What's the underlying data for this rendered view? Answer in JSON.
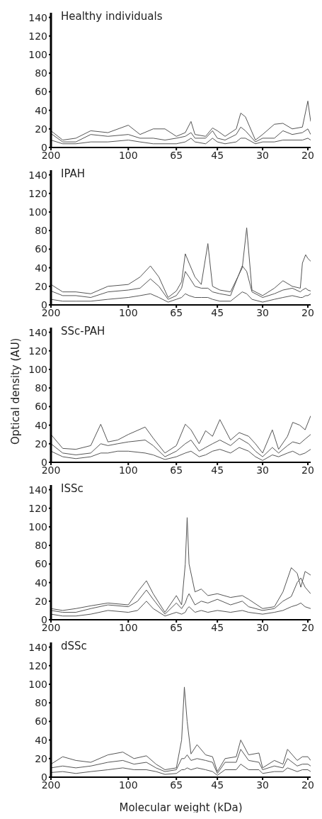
{
  "chart_data": [
    {
      "type": "line",
      "title": "Healthy individuals",
      "x": [
        200,
        180,
        160,
        140,
        120,
        100,
        90,
        80,
        72,
        65,
        60,
        57,
        55,
        50,
        47,
        45,
        42,
        38,
        36.5,
        35,
        32,
        30,
        27,
        25,
        23,
        21,
        20,
        19.5
      ],
      "series": [
        {
          "color": "#555555",
          "values": [
            18,
            8,
            10,
            18,
            16,
            24,
            14,
            20,
            20,
            12,
            16,
            28,
            14,
            12,
            21,
            18,
            12,
            20,
            37,
            33,
            8,
            14,
            25,
            26,
            20,
            22,
            50,
            28
          ]
        },
        {
          "color": "#555555",
          "values": [
            15,
            6,
            6,
            14,
            12,
            14,
            10,
            10,
            8,
            10,
            12,
            16,
            10,
            10,
            18,
            10,
            8,
            14,
            22,
            18,
            6,
            10,
            10,
            18,
            14,
            16,
            20,
            14
          ]
        },
        {
          "color": "#555555",
          "values": [
            8,
            4,
            4,
            6,
            6,
            8,
            6,
            4,
            4,
            4,
            6,
            10,
            6,
            4,
            10,
            6,
            4,
            6,
            10,
            10,
            4,
            6,
            6,
            8,
            8,
            8,
            10,
            8
          ]
        }
      ],
      "xlim": [
        200,
        19.5
      ],
      "xticks": [
        200,
        100,
        65,
        45,
        30,
        20
      ],
      "ylim": [
        0,
        145
      ],
      "yticks": [
        0,
        20,
        40,
        60,
        80,
        100,
        120,
        140
      ],
      "grid": false,
      "legend": false,
      "marker": "none",
      "line_style": "solid",
      "log": "x"
    },
    {
      "type": "line",
      "title": "IPAH",
      "x": [
        200,
        180,
        160,
        140,
        120,
        100,
        90,
        82,
        76,
        70,
        65,
        62,
        60,
        58,
        55,
        52,
        49,
        47,
        44,
        40,
        36,
        34.6,
        33,
        30,
        27,
        25,
        23,
        21.4,
        21,
        20.4,
        20,
        19.5
      ],
      "series": [
        {
          "color": "#555555",
          "values": [
            22,
            14,
            14,
            12,
            20,
            22,
            30,
            42,
            30,
            8,
            15,
            25,
            55,
            45,
            30,
            22,
            66,
            20,
            16,
            14,
            40,
            83,
            16,
            10,
            18,
            26,
            20,
            18,
            45,
            54,
            50,
            47
          ]
        },
        {
          "color": "#555555",
          "values": [
            15,
            10,
            10,
            8,
            14,
            16,
            18,
            28,
            20,
            6,
            10,
            18,
            36,
            30,
            20,
            18,
            18,
            14,
            12,
            10,
            42,
            36,
            14,
            8,
            12,
            16,
            18,
            14,
            16,
            18,
            16,
            15
          ]
        },
        {
          "color": "#555555",
          "values": [
            6,
            4,
            4,
            4,
            6,
            8,
            10,
            12,
            8,
            3,
            6,
            8,
            12,
            10,
            8,
            8,
            8,
            6,
            4,
            4,
            14,
            12,
            6,
            3,
            6,
            8,
            10,
            8,
            8,
            10,
            10,
            12
          ]
        }
      ],
      "xlim": [
        200,
        19.5
      ],
      "xticks": [
        200,
        100,
        65,
        45,
        30,
        20
      ],
      "ylim": [
        0,
        145
      ],
      "yticks": [
        0,
        20,
        40,
        60,
        80,
        100,
        120,
        140
      ],
      "grid": false,
      "legend": false,
      "marker": "none",
      "line_style": "solid",
      "log": "x"
    },
    {
      "type": "line",
      "title": "SSc-PAH",
      "ylabel": "Optical density (AU)",
      "x": [
        200,
        180,
        160,
        140,
        128,
        120,
        110,
        100,
        86,
        80,
        72,
        65,
        60,
        57,
        53,
        50,
        47,
        44,
        40,
        37,
        34,
        32,
        30,
        27.5,
        26,
        24,
        22.9,
        21.5,
        20.5,
        19.5
      ],
      "series": [
        {
          "color": "#555555",
          "values": [
            30,
            15,
            14,
            18,
            41,
            22,
            24,
            30,
            38,
            26,
            10,
            18,
            41,
            35,
            20,
            34,
            28,
            46,
            24,
            32,
            28,
            20,
            10,
            35,
            14,
            28,
            43,
            40,
            35,
            50
          ]
        },
        {
          "color": "#555555",
          "values": [
            20,
            10,
            8,
            10,
            20,
            18,
            20,
            22,
            24,
            18,
            6,
            12,
            20,
            24,
            12,
            16,
            20,
            24,
            18,
            26,
            20,
            12,
            6,
            16,
            10,
            18,
            22,
            20,
            25,
            30
          ]
        },
        {
          "color": "#555555",
          "values": [
            12,
            6,
            4,
            6,
            10,
            10,
            12,
            12,
            10,
            8,
            3,
            6,
            10,
            12,
            6,
            8,
            12,
            14,
            10,
            16,
            12,
            6,
            2,
            8,
            6,
            10,
            12,
            8,
            10,
            14
          ]
        }
      ],
      "xlim": [
        200,
        19.5
      ],
      "xticks": [
        200,
        100,
        65,
        45,
        30,
        20
      ],
      "ylim": [
        0,
        145
      ],
      "yticks": [
        0,
        20,
        40,
        60,
        80,
        100,
        120,
        140
      ],
      "grid": false,
      "legend": false,
      "marker": "none",
      "line_style": "solid",
      "log": "x"
    },
    {
      "type": "line",
      "title": "ISSc",
      "x": [
        200,
        180,
        160,
        140,
        120,
        100,
        92,
        85,
        80,
        72,
        65,
        62,
        60,
        59,
        58,
        55,
        52,
        49,
        45,
        40,
        36,
        34,
        30,
        27,
        25,
        23.2,
        22,
        21.3,
        20.5,
        19.5
      ],
      "series": [
        {
          "color": "#555555",
          "values": [
            12,
            10,
            12,
            15,
            18,
            16,
            30,
            42,
            28,
            8,
            26,
            16,
            60,
            110,
            60,
            30,
            33,
            26,
            28,
            24,
            26,
            22,
            12,
            14,
            30,
            56,
            50,
            35,
            52,
            48
          ]
        },
        {
          "color": "#555555",
          "values": [
            10,
            8,
            8,
            12,
            16,
            14,
            20,
            32,
            22,
            6,
            18,
            12,
            18,
            24,
            28,
            16,
            20,
            18,
            22,
            16,
            20,
            14,
            10,
            12,
            20,
            25,
            40,
            45,
            35,
            28
          ]
        },
        {
          "color": "#555555",
          "values": [
            6,
            4,
            4,
            6,
            10,
            8,
            10,
            20,
            12,
            4,
            8,
            6,
            8,
            12,
            14,
            8,
            10,
            8,
            10,
            8,
            10,
            8,
            6,
            8,
            10,
            14,
            16,
            18,
            14,
            12
          ]
        }
      ],
      "xlim": [
        200,
        19.5
      ],
      "xticks": [
        200,
        100,
        65,
        45,
        30,
        20
      ],
      "ylim": [
        0,
        145
      ],
      "yticks": [
        0,
        20,
        40,
        60,
        80,
        100,
        120,
        140
      ],
      "grid": false,
      "legend": false,
      "marker": "none",
      "line_style": "solid",
      "log": "x"
    },
    {
      "type": "line",
      "title": "dSSc",
      "xlabel": "Molecular weight (kDa)",
      "x": [
        200,
        180,
        160,
        140,
        120,
        105,
        95,
        85,
        78,
        72,
        65,
        62,
        60.5,
        59,
        57,
        54,
        50,
        47,
        45,
        42,
        38,
        36.5,
        34,
        31,
        30,
        27,
        25,
        24,
        22,
        21,
        20,
        19.5
      ],
      "series": [
        {
          "color": "#555555",
          "values": [
            14,
            22,
            18,
            16,
            24,
            27,
            20,
            23,
            14,
            8,
            10,
            40,
            97,
            60,
            25,
            35,
            24,
            22,
            6,
            20,
            22,
            40,
            24,
            26,
            10,
            18,
            14,
            30,
            18,
            22,
            22,
            18
          ]
        },
        {
          "color": "#555555",
          "values": [
            10,
            12,
            10,
            12,
            16,
            18,
            14,
            16,
            10,
            6,
            8,
            20,
            20,
            24,
            18,
            20,
            18,
            16,
            4,
            16,
            16,
            30,
            18,
            16,
            8,
            12,
            10,
            20,
            12,
            14,
            14,
            12
          ]
        },
        {
          "color": "#555555",
          "values": [
            5,
            6,
            4,
            6,
            8,
            10,
            8,
            8,
            6,
            3,
            4,
            8,
            8,
            10,
            8,
            10,
            8,
            6,
            2,
            8,
            8,
            14,
            8,
            8,
            4,
            6,
            6,
            10,
            6,
            8,
            8,
            6
          ]
        }
      ],
      "xlim": [
        200,
        19.5
      ],
      "xticks": [
        200,
        100,
        65,
        45,
        30,
        20
      ],
      "ylim": [
        0,
        145
      ],
      "yticks": [
        0,
        20,
        40,
        60,
        80,
        100,
        120,
        140
      ],
      "grid": false,
      "legend": false,
      "marker": "none",
      "line_style": "solid",
      "log": "x"
    }
  ]
}
